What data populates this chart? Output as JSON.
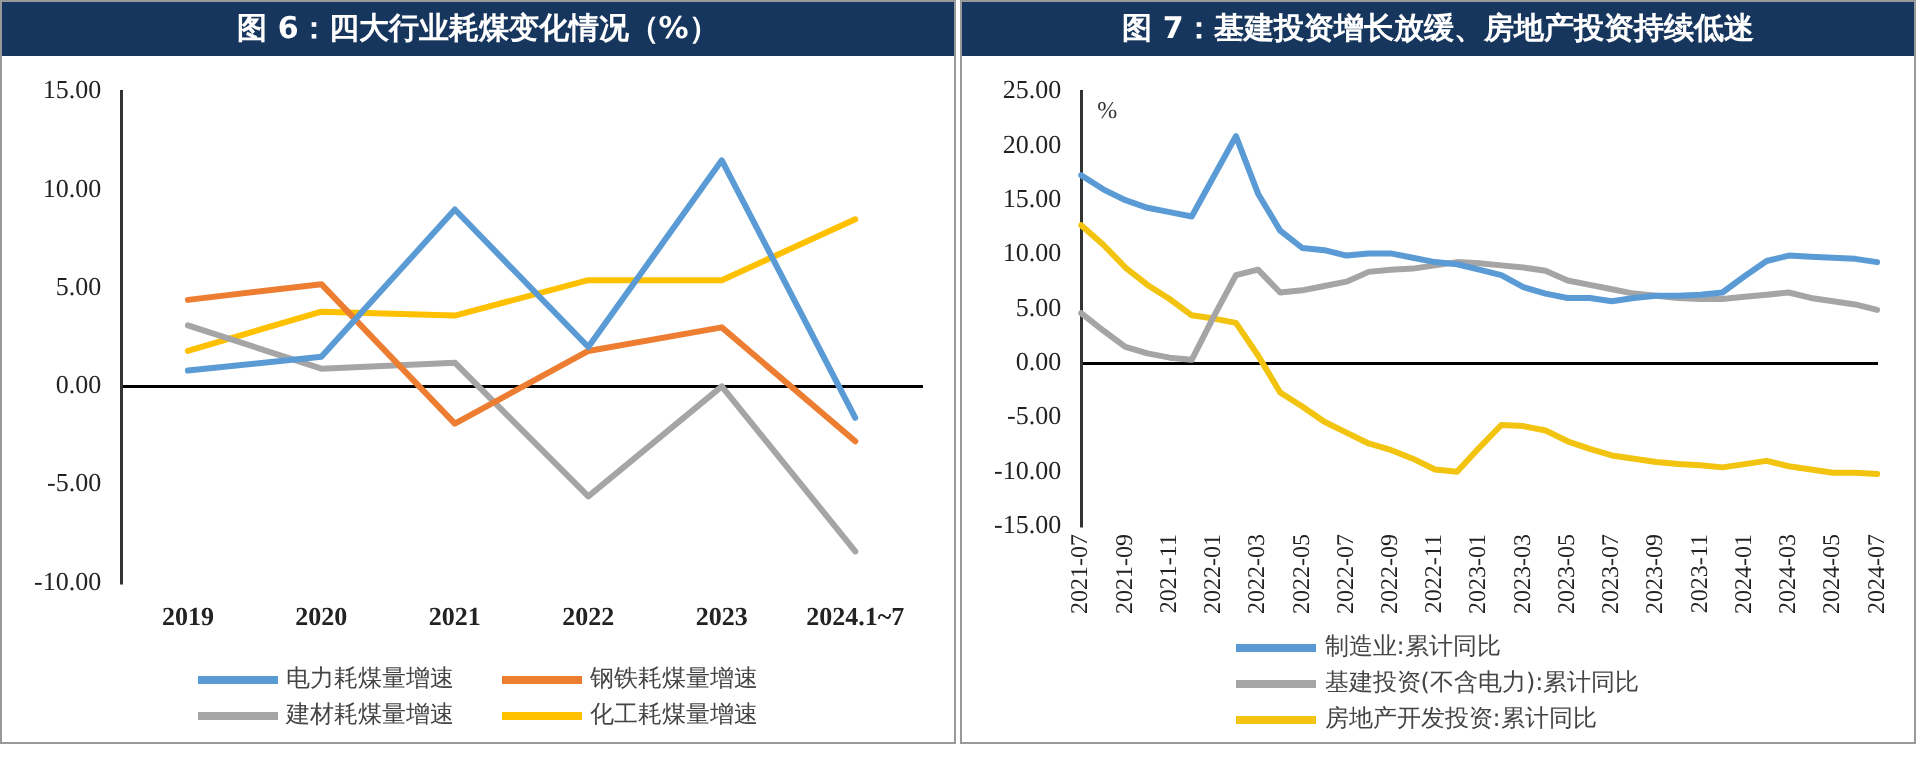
{
  "chart_data": [
    {
      "type": "line",
      "title": "图 6：四大行业耗煤变化情况（%）",
      "categories": [
        "2019",
        "2020",
        "2021",
        "2022",
        "2023",
        "2024.1~7"
      ],
      "series": [
        {
          "name": "电力耗煤量增速",
          "color": "#5b9bd5",
          "values": [
            0.8,
            1.5,
            9.0,
            2.0,
            11.5,
            -1.6
          ]
        },
        {
          "name": "钢铁耗煤量增速",
          "color": "#ed7d31",
          "values": [
            4.4,
            5.2,
            -1.9,
            1.8,
            3.0,
            -2.8
          ]
        },
        {
          "name": "建材耗煤量增速",
          "color": "#a5a5a5",
          "values": [
            3.1,
            0.9,
            1.2,
            -5.6,
            0.0,
            -8.4
          ]
        },
        {
          "name": "化工耗煤量增速",
          "color": "#ffc000",
          "values": [
            1.8,
            3.8,
            3.6,
            5.4,
            5.4,
            8.5
          ]
        }
      ],
      "ylim": [
        -10,
        15
      ],
      "yticks": [
        {
          "value": -10,
          "label": "-10.00"
        },
        {
          "value": -5,
          "label": "-5.00"
        },
        {
          "value": 0,
          "label": "0.00"
        },
        {
          "value": 5,
          "label": "5.00"
        },
        {
          "value": 10,
          "label": "10.00"
        },
        {
          "value": 15,
          "label": "15.00"
        }
      ],
      "legend": "bottom",
      "marker": "none",
      "line_style": "solid"
    },
    {
      "type": "line",
      "title": "图 7：基建投资增长放缓、房地产投资持续低迷",
      "ylabel": "%",
      "categories": [
        "2021-07",
        null,
        "2021-09",
        null,
        "2021-11",
        null,
        "2022-01",
        null,
        "2022-03",
        null,
        "2022-05",
        null,
        "2022-07",
        null,
        "2022-09",
        null,
        "2022-11",
        null,
        "2023-01",
        null,
        "2023-03",
        null,
        "2023-05",
        null,
        "2023-07",
        null,
        "2023-09",
        null,
        "2023-11",
        null,
        "2024-01",
        null,
        "2024-03",
        null,
        "2024-05",
        null,
        "2024-07"
      ],
      "series": [
        {
          "name": "制造业:累计同比",
          "color": "#5b9bd5",
          "values": [
            17.3,
            16.0,
            15.0,
            14.3,
            13.9,
            13.5,
            17.2,
            20.9,
            15.6,
            12.2,
            10.6,
            10.4,
            9.9,
            10.1,
            10.1,
            9.7,
            9.3,
            9.1,
            8.6,
            8.1,
            7.0,
            6.4,
            6.0,
            6.0,
            5.7,
            6.0,
            6.2,
            6.2,
            6.3,
            6.5,
            8.0,
            9.4,
            9.9,
            9.8,
            9.7,
            9.6,
            9.3
          ]
        },
        {
          "name": "基建投资(不含电力):累计同比",
          "color": "#a5a5a5",
          "values": [
            4.6,
            3.0,
            1.5,
            0.9,
            0.5,
            0.3,
            4.3,
            8.1,
            8.6,
            6.5,
            6.7,
            7.1,
            7.5,
            8.4,
            8.6,
            8.7,
            9.0,
            9.3,
            9.2,
            9.0,
            8.8,
            8.5,
            7.6,
            7.2,
            6.8,
            6.4,
            6.2,
            6.0,
            5.9,
            5.9,
            6.1,
            6.3,
            6.5,
            6.0,
            5.7,
            5.4,
            4.9
          ]
        },
        {
          "name": "房地产开发投资:累计同比",
          "color": "#f2c40f",
          "values": [
            12.7,
            10.9,
            8.8,
            7.2,
            5.9,
            4.4,
            4.1,
            3.7,
            0.7,
            -2.7,
            -4.0,
            -5.4,
            -6.4,
            -7.4,
            -8.0,
            -8.8,
            -9.8,
            -10.0,
            -7.8,
            -5.7,
            -5.8,
            -6.2,
            -7.2,
            -7.9,
            -8.5,
            -8.8,
            -9.1,
            -9.3,
            -9.4,
            -9.6,
            -9.3,
            -9.0,
            -9.5,
            -9.8,
            -10.1,
            -10.1,
            -10.2
          ]
        }
      ],
      "ylim": [
        -15,
        25
      ],
      "yticks": [
        {
          "value": -15,
          "label": "-15.00"
        },
        {
          "value": -10,
          "label": "-10.00"
        },
        {
          "value": -5,
          "label": "-5.00"
        },
        {
          "value": 0,
          "label": "0.00"
        },
        {
          "value": 5,
          "label": "5.00"
        },
        {
          "value": 10,
          "label": "10.00"
        },
        {
          "value": 15,
          "label": "15.00"
        },
        {
          "value": 20,
          "label": "20.00"
        },
        {
          "value": 25,
          "label": "25.00"
        }
      ],
      "legend": "bottom",
      "marker": "none",
      "line_style": "solid"
    }
  ]
}
